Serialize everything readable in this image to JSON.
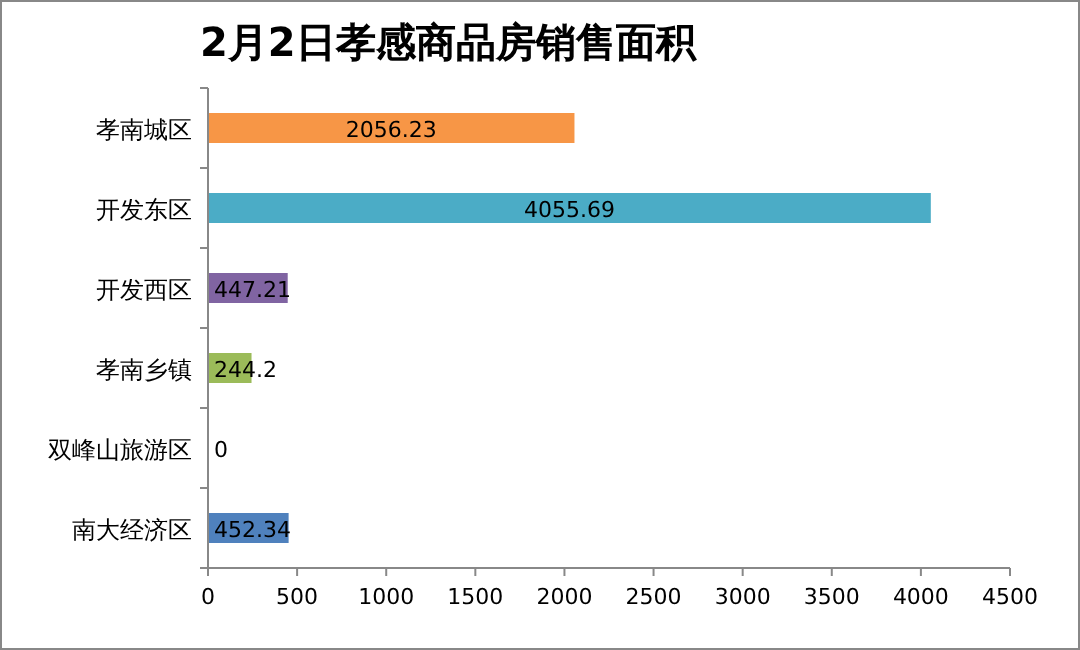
{
  "chart_data": {
    "type": "bar",
    "orientation": "horizontal",
    "title": "2月2日孝感商品房销售面积",
    "categories": [
      "孝南城区",
      "开发东区",
      "开发西区",
      "孝南乡镇",
      "双峰山旅游区",
      "南大经济区"
    ],
    "values": [
      2056.23,
      4055.69,
      447.21,
      244.2,
      0,
      452.34
    ],
    "colors": [
      "#f79646",
      "#4bacc6",
      "#8064a2",
      "#9bbb59",
      "#c0504d",
      "#4f81bd"
    ],
    "xlim": [
      0,
      4500
    ],
    "xticks": [
      0,
      500,
      1000,
      1500,
      2000,
      2500,
      3000,
      3500,
      4000,
      4500
    ],
    "data_labels": true
  }
}
